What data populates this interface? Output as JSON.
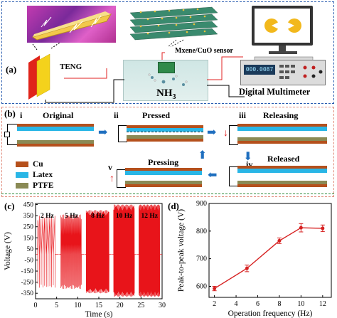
{
  "panel_a": {
    "label": "(a)",
    "teng_label": "TENG",
    "sensor_label": "Mxene/CuO sensor",
    "gas_label": "NH",
    "gas_sub": "3",
    "multimeter_label": "Digital Multimeter",
    "display_value": "000.0087"
  },
  "panel_b": {
    "label": "(b)",
    "stages": [
      {
        "num": "i",
        "label": "Original"
      },
      {
        "num": "ii",
        "label": "Pressed"
      },
      {
        "num": "iii",
        "label": "Releasing"
      },
      {
        "num": "iv",
        "label": "Released"
      },
      {
        "num": "v",
        "label": "Pressing"
      }
    ],
    "legend": [
      {
        "label": "Cu",
        "color": "#b5501c"
      },
      {
        "label": "Latex",
        "color": "#29b6e6"
      },
      {
        "label": "PTFE",
        "color": "#8a8a55"
      }
    ]
  },
  "chart_data": [
    {
      "type": "line",
      "panel": "(c)",
      "xlabel": "Time (s)",
      "ylabel": "Voltage (V)",
      "xlim": [
        0,
        30
      ],
      "ylim": [
        -400,
        460
      ],
      "xticks": [
        0,
        5,
        10,
        15,
        20,
        25,
        30
      ],
      "yticks": [
        -350,
        -250,
        -150,
        -50,
        50,
        150,
        250,
        350,
        450
      ],
      "color": "#e8141a",
      "segments": [
        {
          "label": "2 Hz",
          "x_start": 0.5,
          "x_end": 5.0,
          "max": 350,
          "min": -300,
          "freq": 2
        },
        {
          "label": "5 Hz",
          "x_start": 6.0,
          "x_end": 11.0,
          "max": 360,
          "min": -310,
          "freq": 5
        },
        {
          "label": "8 Hz",
          "x_start": 12.0,
          "x_end": 17.5,
          "max": 400,
          "min": -350,
          "freq": 8
        },
        {
          "label": "10 Hz",
          "x_start": 18.5,
          "x_end": 23.5,
          "max": 450,
          "min": -380,
          "freq": 10
        },
        {
          "label": "12 Hz",
          "x_start": 24.5,
          "x_end": 29.5,
          "max": 450,
          "min": -380,
          "freq": 12
        }
      ]
    },
    {
      "type": "line",
      "panel": "(d)",
      "xlabel": "Operation frequency (Hz)",
      "ylabel": "Peak-to-peak voltage (V)",
      "xlim": [
        1.5,
        12.8
      ],
      "ylim": [
        560,
        900
      ],
      "xticks": [
        2,
        4,
        6,
        8,
        10,
        12
      ],
      "yticks": [
        600,
        700,
        800,
        900
      ],
      "color": "#d62020",
      "x": [
        2,
        5,
        8,
        10,
        12
      ],
      "y": [
        592,
        665,
        765,
        812,
        810
      ],
      "err": [
        8,
        12,
        10,
        15,
        12
      ]
    }
  ]
}
